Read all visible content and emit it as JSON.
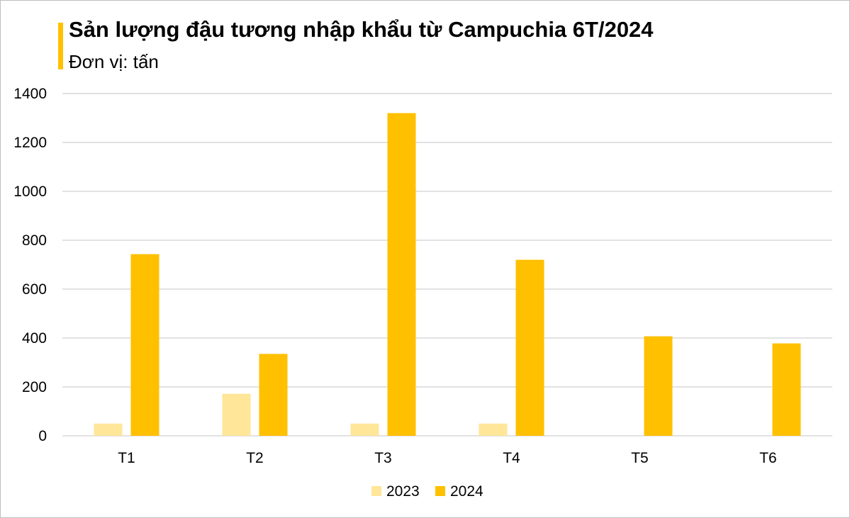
{
  "chart_data": {
    "type": "bar",
    "title": "Sản lượng đậu tương nhập khẩu từ Campuchia 6T/2024",
    "subtitle": "Đơn vị: tấn",
    "categories": [
      "T1",
      "T2",
      "T3",
      "T4",
      "T5",
      "T6"
    ],
    "series": [
      {
        "name": "2023",
        "values": [
          50,
          172,
          50,
          50,
          0,
          0
        ],
        "color": "#ffe699"
      },
      {
        "name": "2024",
        "values": [
          743,
          335,
          1320,
          720,
          407,
          378
        ],
        "color": "#ffc000"
      }
    ],
    "ylim": [
      0,
      1400
    ],
    "yticks": [
      "0",
      "200",
      "400",
      "600",
      "800",
      "1000",
      "1200",
      "1400"
    ],
    "grid": true,
    "legend": "bottom"
  },
  "colors": {
    "accent": "#ffc000",
    "gridline": "#d9d9d9"
  }
}
